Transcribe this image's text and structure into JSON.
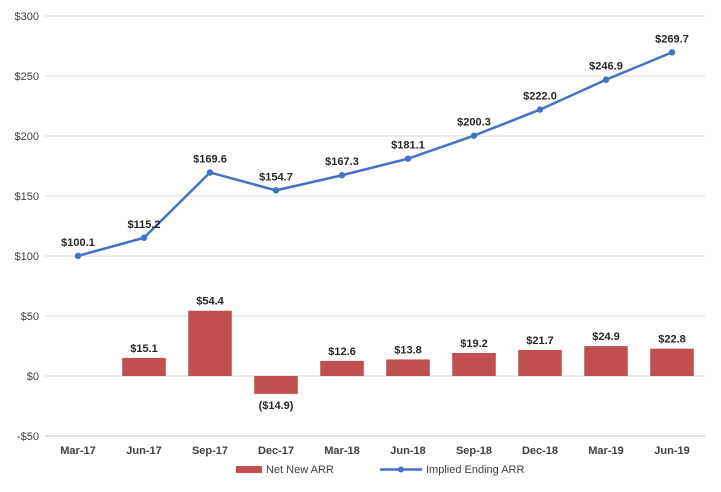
{
  "chart_data": {
    "type": "bar",
    "categories": [
      "Mar-17",
      "Jun-17",
      "Sep-17",
      "Dec-17",
      "Mar-18",
      "Jun-18",
      "Sep-18",
      "Dec-18",
      "Mar-19",
      "Jun-19"
    ],
    "series": [
      {
        "name": "Net New ARR",
        "type": "bar",
        "color": "#c0504d",
        "values": [
          null,
          15.1,
          54.4,
          -14.9,
          12.6,
          13.8,
          19.2,
          21.7,
          24.9,
          22.8
        ],
        "labels": [
          "",
          "$15.1",
          "$54.4",
          "($14.9)",
          "$12.6",
          "$13.8",
          "$19.2",
          "$21.7",
          "$24.9",
          "$22.8"
        ]
      },
      {
        "name": "Implied Ending ARR",
        "type": "line",
        "color": "#4472c4",
        "values": [
          100.1,
          115.2,
          169.6,
          154.7,
          167.3,
          181.1,
          200.3,
          222.0,
          246.9,
          269.7
        ],
        "labels": [
          "$100.1",
          "$115.2",
          "$169.6",
          "$154.7",
          "$167.3",
          "$181.1",
          "$200.3",
          "$222.0",
          "$246.9",
          "$269.7"
        ]
      }
    ],
    "ylim": [
      -50,
      300
    ],
    "yticks": [
      -50,
      0,
      50,
      100,
      150,
      200,
      250,
      300
    ],
    "ytick_labels": [
      "-$50",
      "$0",
      "$50",
      "$100",
      "$150",
      "$200",
      "$250",
      "$300"
    ],
    "grid": "horizontal",
    "legend": "bottom"
  }
}
